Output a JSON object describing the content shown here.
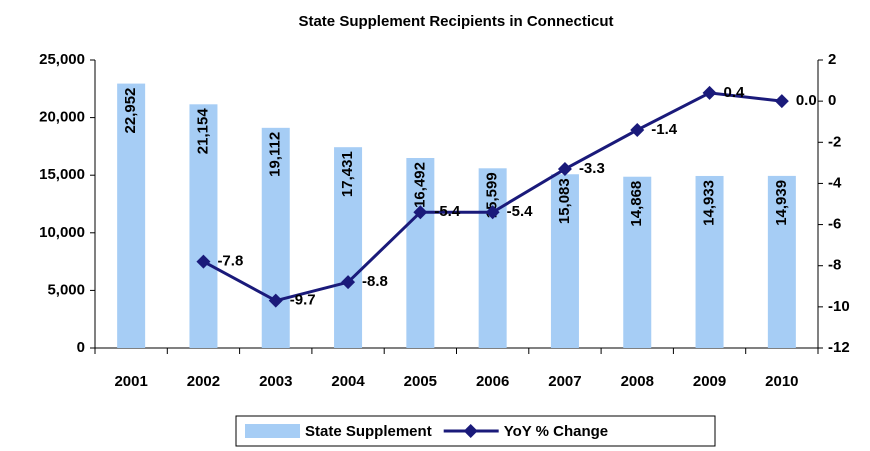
{
  "chart_data": {
    "type": "bar_line",
    "title": "State Supplement Recipients in Connecticut",
    "categories": [
      "2001",
      "2002",
      "2003",
      "2004",
      "2005",
      "2006",
      "2007",
      "2008",
      "2009",
      "2010"
    ],
    "series": [
      {
        "name": "State Supplement",
        "type": "bar",
        "color": "#a6cdf5",
        "values": [
          22952,
          21154,
          19112,
          17431,
          16492,
          15599,
          15083,
          14868,
          14933,
          14939
        ],
        "value_labels": [
          "22,952",
          "21,154",
          "19,112",
          "17,431",
          "16,492",
          "15,599",
          "15,083",
          "14,868",
          "14,933",
          "14,939"
        ]
      },
      {
        "name": "YoY % Change",
        "type": "line",
        "axis": "y2",
        "color": "#1a1a7a",
        "values": [
          null,
          -7.8,
          -9.7,
          -8.8,
          -5.4,
          -5.4,
          -3.3,
          -1.4,
          0.4,
          0.0
        ],
        "value_labels": [
          null,
          "-7.8",
          "-9.7",
          "-8.8",
          "-5.4",
          "-5.4",
          "-3.3",
          "-1.4",
          "0.4",
          "0.0"
        ]
      }
    ],
    "ylim": [
      0,
      25000
    ],
    "yticks": [
      0,
      {
        "value": 5000,
        "label": "5,000"
      },
      {
        "value": 10000,
        "label": "10,000"
      },
      {
        "value": 15000,
        "label": "15,000"
      },
      {
        "value": 20000,
        "label": "20,000"
      },
      {
        "value": 25000,
        "label": "25,000"
      }
    ],
    "y2lim": [
      -12,
      2
    ],
    "y2ticks": [
      -12,
      -10,
      -8,
      -6,
      -4,
      -2,
      0,
      2
    ],
    "grid": false,
    "legend": "bottom"
  }
}
